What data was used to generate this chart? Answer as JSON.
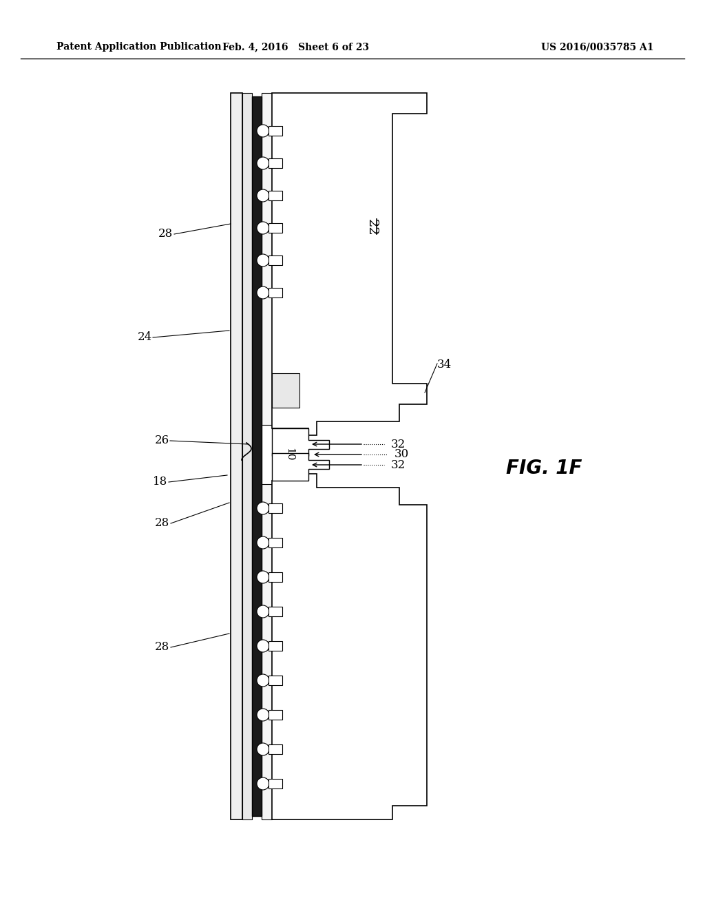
{
  "header_left": "Patent Application Publication",
  "header_mid": "Feb. 4, 2016   Sheet 6 of 23",
  "header_right": "US 2016/0035785 A1",
  "fig_label": "FIG. 1F",
  "bg_color": "#ffffff",
  "line_color": "#000000"
}
